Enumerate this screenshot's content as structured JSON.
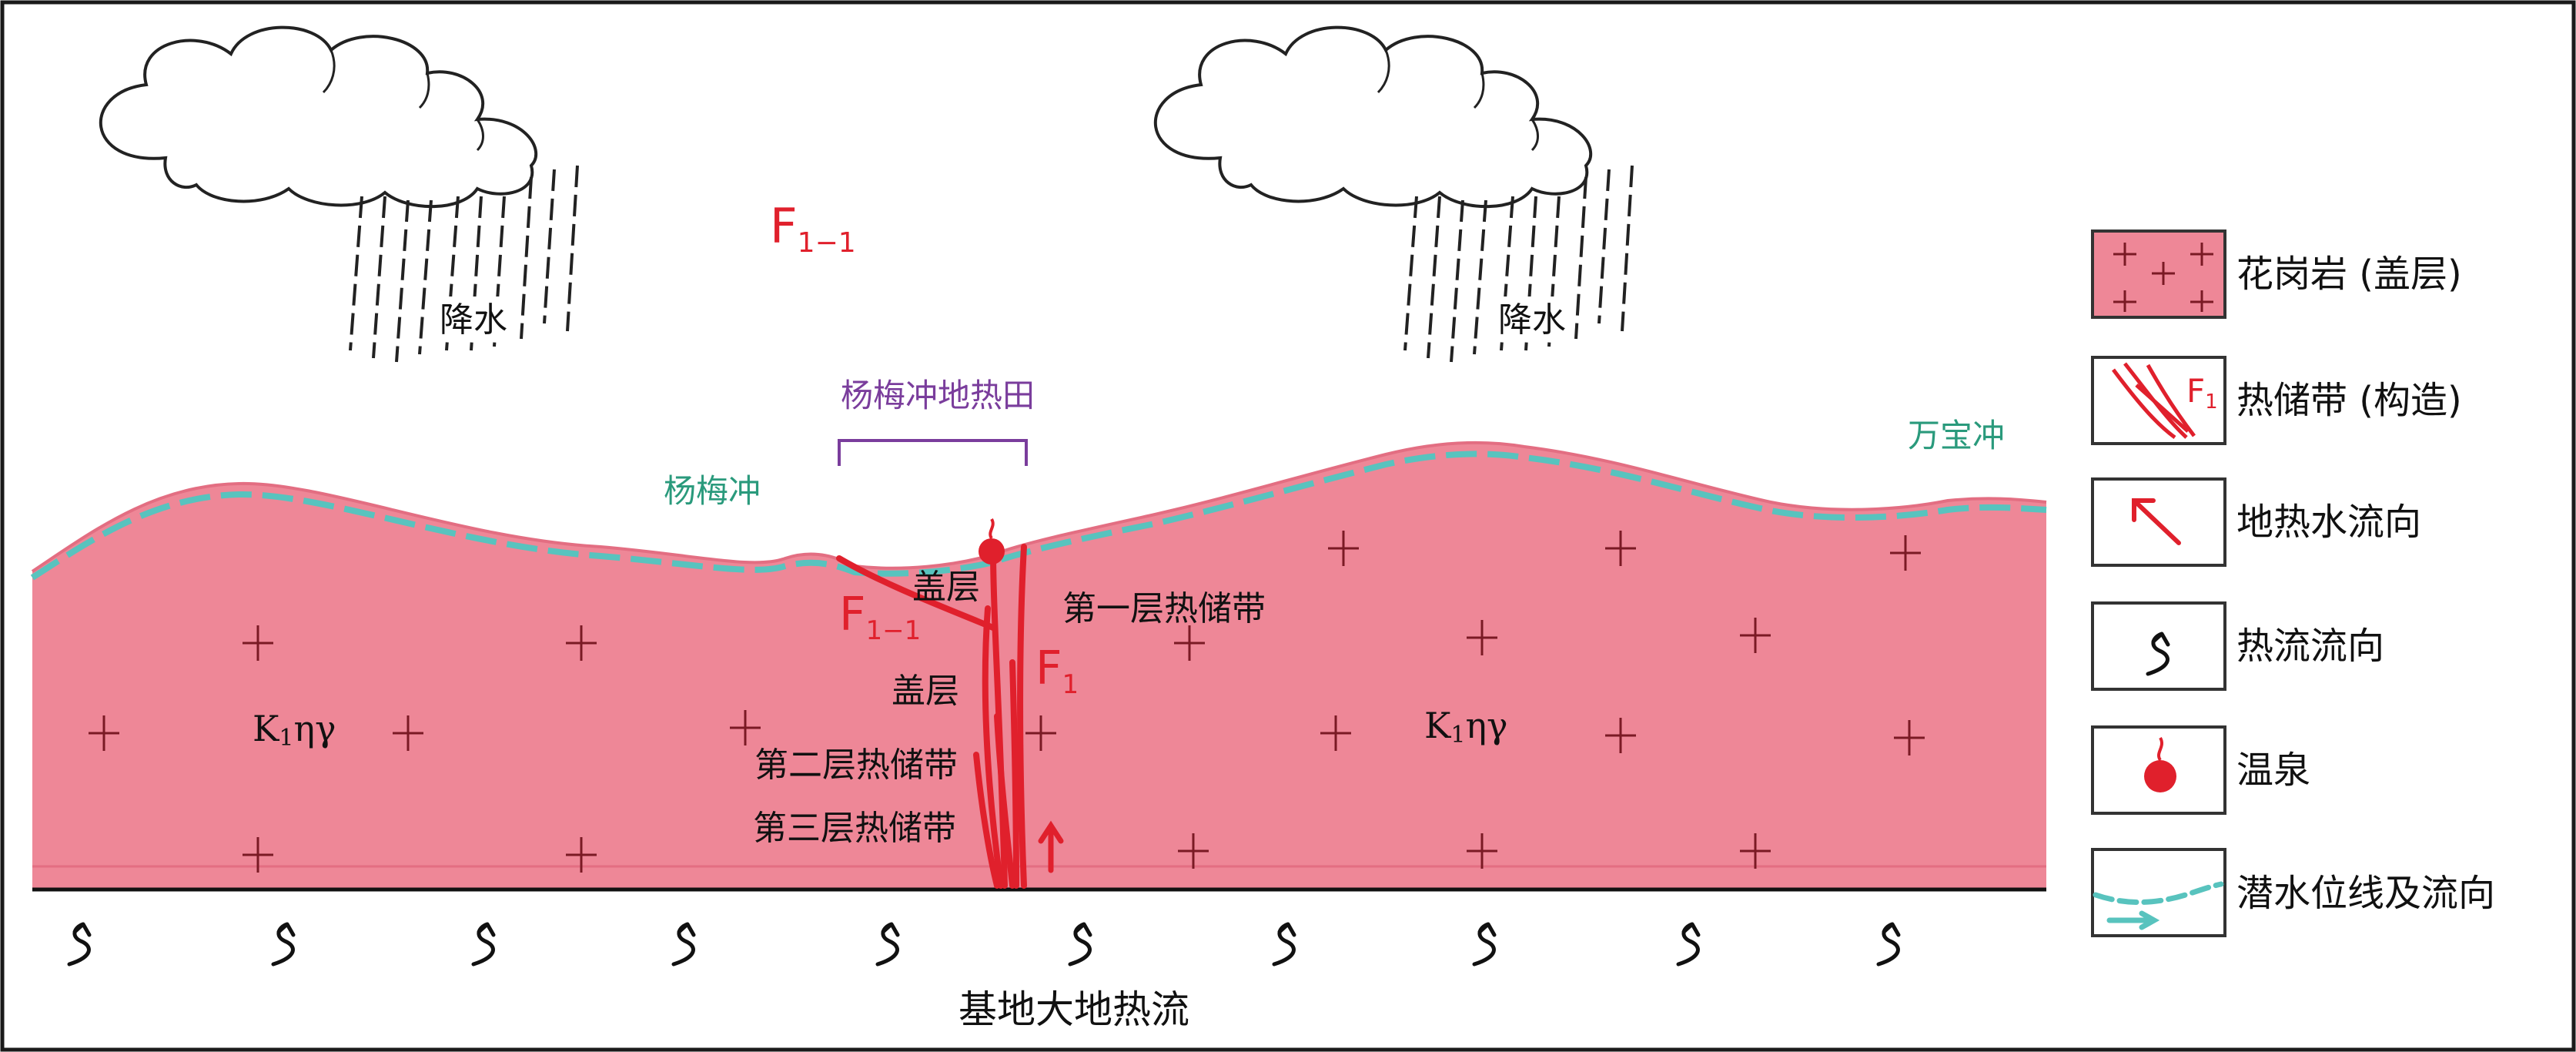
{
  "labels": {
    "precipitation_left": "降水",
    "precipitation_right": "降水",
    "fault_top": "F",
    "fault_top_sub": "1−1",
    "geothermal_field": "杨梅冲地热田",
    "place_yangmeichong": "杨梅冲",
    "place_wanbaochong": "万宝冲",
    "caprock_upper": "盖层",
    "caprock_lower": "盖层",
    "fault_f11": "F",
    "fault_f11_sub": "1−1",
    "fault_f1": "F",
    "fault_f1_sub": "1",
    "reservoir_1": "第一层热储带",
    "reservoir_2": "第二层热储带",
    "reservoir_3": "第三层热储带",
    "rock_code_left": "K",
    "rock_code_left_sub": "1",
    "rock_code_left_tail": "ηγ",
    "rock_code_right": "K",
    "rock_code_right_sub": "1",
    "rock_code_right_tail": "ηγ",
    "basal_heat_flow": "基地大地热流"
  },
  "legend": {
    "items": [
      {
        "label": "花岗岩 (盖层)",
        "icon": "granite-swatch"
      },
      {
        "label": "热储带 (构造)",
        "icon": "fault-zone-swatch",
        "swatch_text": "F",
        "swatch_sub": "1"
      },
      {
        "label": "地热水流向",
        "icon": "geothermal-flow-arrow"
      },
      {
        "label": "热流流向",
        "icon": "heat-flow-arrow"
      },
      {
        "label": "温泉",
        "icon": "hot-spring-dot"
      },
      {
        "label": "潜水位线及流向",
        "icon": "water-table-line"
      }
    ]
  },
  "colors": {
    "granite": "#ee8797",
    "fault_red": "#e0202c",
    "water_table": "#58c3be",
    "purple": "#7a3d9c",
    "teal_text": "#2a9a7c",
    "frame": "#1a1a1a"
  }
}
